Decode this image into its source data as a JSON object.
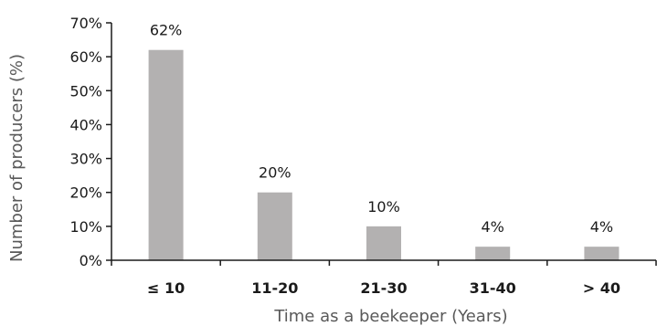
{
  "chart_data": {
    "type": "bar",
    "categories": [
      "≤ 10",
      "11-20",
      "21-30",
      "31-40",
      "> 40"
    ],
    "values": [
      62,
      20,
      10,
      4,
      4
    ],
    "data_labels": [
      "62%",
      "20%",
      "10%",
      "4%",
      "4%"
    ],
    "title": "",
    "xlabel": "Time as a beekeeper (Years)",
    "ylabel": "Number of producers (%)",
    "ylim": [
      0,
      70
    ],
    "yticks": [
      0,
      10,
      20,
      30,
      40,
      50,
      60,
      70
    ],
    "ytick_labels": [
      "0%",
      "10%",
      "20%",
      "30%",
      "40%",
      "50%",
      "60%",
      "70%"
    ],
    "grid": false,
    "legend": "none",
    "bar_color": "#b3b1b1",
    "axis_color": "#1a1a1a"
  }
}
